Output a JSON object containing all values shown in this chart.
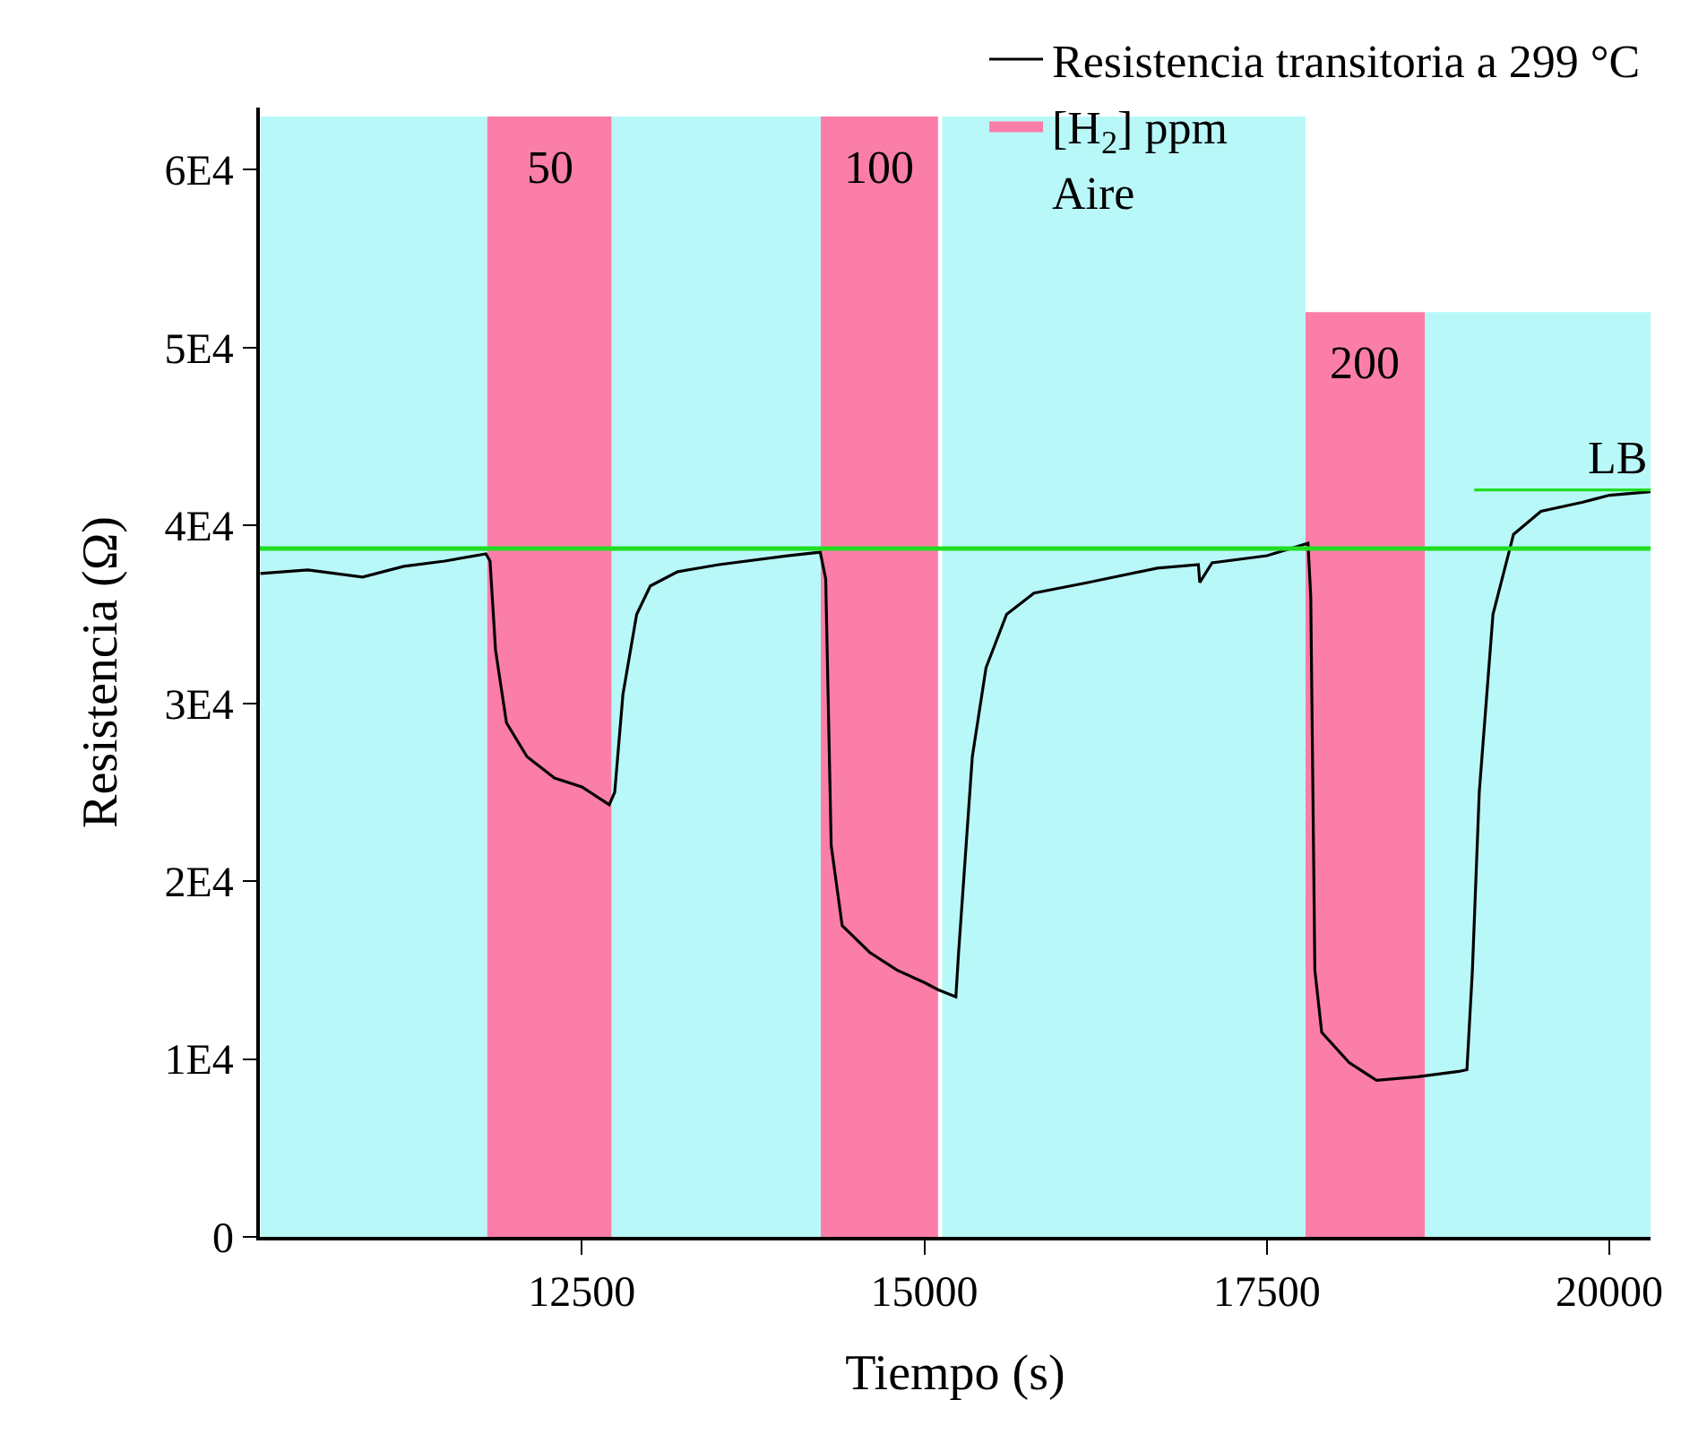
{
  "chart_data": {
    "type": "line",
    "xlabel": "Tiempo (s)",
    "ylabel": "Resistencia (Ω)",
    "xlim": [
      10150,
      20300
    ],
    "xticks": [
      12500,
      15000,
      17500,
      20000
    ],
    "ylim": [
      0,
      63500
    ],
    "yticks": [
      0,
      {
        "value": 10000,
        "label": "1E4"
      },
      {
        "value": 20000,
        "label": "2E4"
      },
      {
        "value": 30000,
        "label": "3E4"
      },
      {
        "value": 40000,
        "label": "4E4"
      },
      {
        "value": 50000,
        "label": "5E4"
      },
      {
        "value": 60000,
        "label": "6E4"
      }
    ],
    "grid": false,
    "legend": "top right",
    "marker": "none",
    "line_style": "solid",
    "series": [
      {
        "name": "Resistencia transitoria a 299 °C",
        "color": "#000000",
        "x": [
          10154,
          10500,
          10900,
          11200,
          11500,
          11800,
          11830,
          11870,
          11950,
          12100,
          12300,
          12500,
          12700,
          12740,
          12800,
          12900,
          13000,
          13200,
          13500,
          14000,
          14240,
          14280,
          14320,
          14400,
          14600,
          14800,
          15000,
          15100,
          15230,
          15250,
          15350,
          15450,
          15600,
          15800,
          16200,
          16700,
          17000,
          17010,
          17100,
          17500,
          17800,
          17820,
          17850,
          17900,
          18100,
          18300,
          18600,
          18900,
          18960,
          19000,
          19050,
          19150,
          19300,
          19500,
          19800,
          20000,
          20300
        ],
        "values": [
          37300,
          37500,
          37100,
          37700,
          38000,
          38400,
          38000,
          33000,
          28900,
          27000,
          25800,
          25300,
          24300,
          25000,
          30500,
          35000,
          36600,
          37400,
          37800,
          38300,
          38500,
          37000,
          22000,
          17500,
          16000,
          15000,
          14300,
          13900,
          13500,
          16000,
          27000,
          32000,
          35000,
          36200,
          36800,
          37600,
          37800,
          36800,
          37900,
          38300,
          39000,
          36000,
          15000,
          11500,
          9800,
          8800,
          9000,
          9300,
          9400,
          15000,
          25000,
          35000,
          39500,
          40800,
          41300,
          41700,
          41900
        ]
      },
      {
        "name": "[H$_{2}$] ppm",
        "type": "area",
        "color": "#fb7ea8",
        "x": [
          11808,
          11808,
          12718,
          12718,
          14244,
          14244,
          15100,
          15100,
          17782,
          17782,
          18654,
          18654
        ],
        "values": [
          0,
          63000,
          63000,
          0,
          0,
          63000,
          63000,
          0,
          0,
          52000,
          52000,
          0
        ]
      },
      {
        "name": "Aire",
        "type": "area",
        "color": "#b9f8f8",
        "x": [
          10154,
          11808,
          11808,
          12718,
          12718,
          14244,
          14244,
          15130,
          15130,
          17782,
          17782,
          18654,
          18654,
          20300
        ],
        "values": [
          63000,
          63000,
          0,
          0,
          63000,
          63000,
          0,
          0,
          63000,
          63000,
          0,
          0,
          52000,
          52000
        ]
      },
      {
        "type": "line",
        "color": "#22dd22",
        "x": [
          19013,
          20300
        ],
        "values": [
          42000,
          42000
        ]
      }
    ],
    "ref_lines": [
      {
        "axis": "y",
        "value": 38700,
        "color": "#22dd22",
        "line_style": "solid"
      }
    ],
    "annotations": [
      "50",
      "100",
      "200",
      "LB"
    ]
  }
}
